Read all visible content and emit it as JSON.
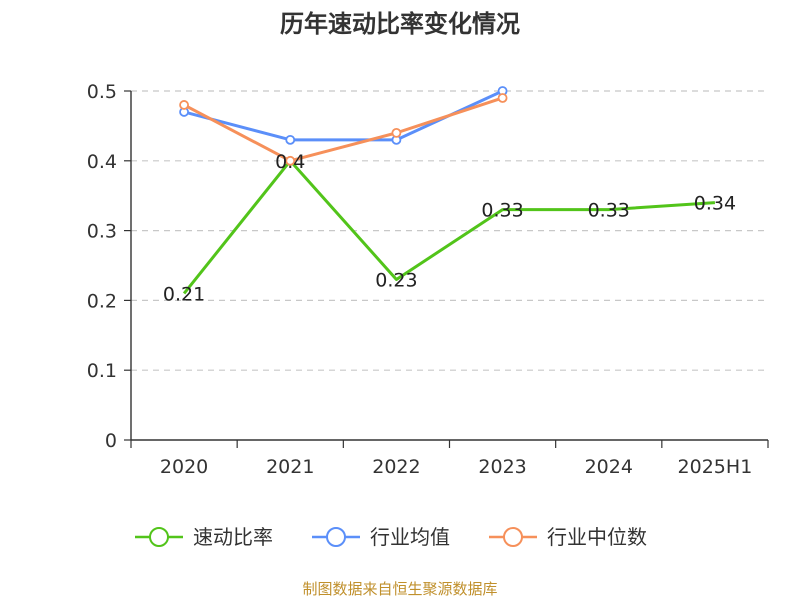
{
  "source_note": "制图数据来自恒生聚源数据库",
  "chart_data": {
    "type": "line",
    "title": "历年速动比率变化情况",
    "categories": [
      "2020",
      "2021",
      "2022",
      "2023",
      "2024",
      "2025H1"
    ],
    "y_ticks": [
      "0",
      "0.1",
      "0.2",
      "0.3",
      "0.4",
      "0.5"
    ],
    "ylim": [
      0,
      0.5
    ],
    "grid": true,
    "legend_position": "bottom",
    "series": [
      {
        "name": "速动比率",
        "color": "#52c41a",
        "values": [
          0.21,
          0.4,
          0.23,
          0.33,
          0.33,
          0.34
        ],
        "labels": [
          "0.21",
          "0.4",
          "0.23",
          "0.33",
          "0.33",
          "0.34"
        ],
        "show_markers": false
      },
      {
        "name": "行业均值",
        "color": "#5b8ff9",
        "values": [
          0.47,
          0.43,
          0.43,
          0.5,
          null,
          null
        ],
        "show_markers": true
      },
      {
        "name": "行业中位数",
        "color": "#f6905a",
        "values": [
          0.48,
          0.4,
          0.44,
          0.49,
          null,
          null
        ],
        "show_markers": true
      }
    ]
  }
}
